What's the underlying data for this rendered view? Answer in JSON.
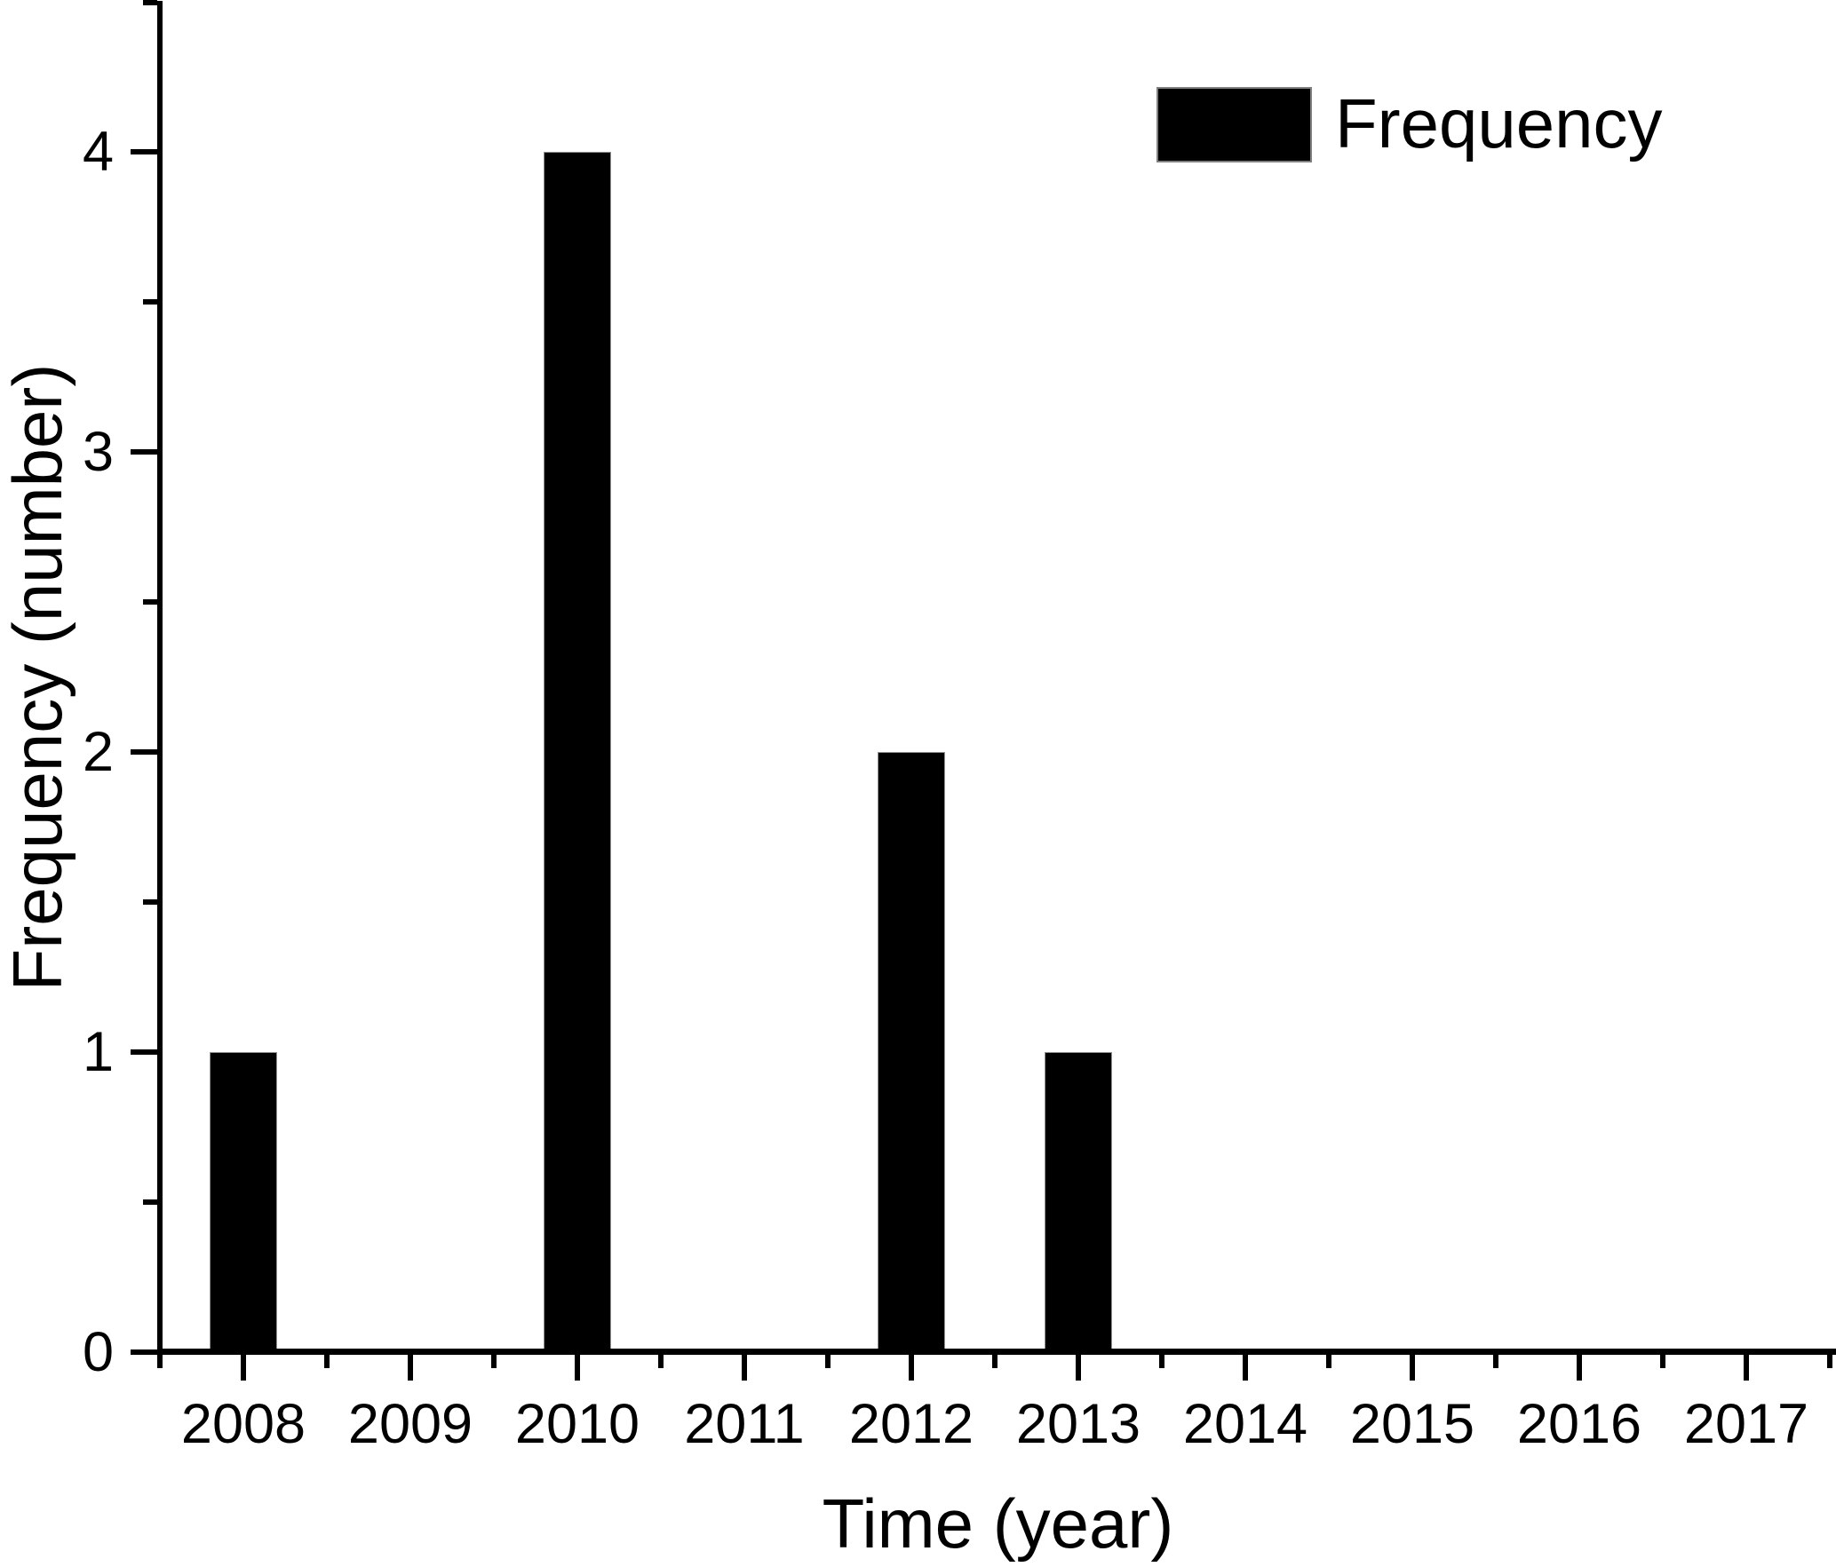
{
  "chart_data": {
    "type": "bar",
    "title": "",
    "xlabel": "Time (year)",
    "ylabel": "Frequency (number)",
    "series_name": "Frequency",
    "categories": [
      2008,
      2009,
      2010,
      2011,
      2012,
      2013,
      2014,
      2015,
      2016,
      2017
    ],
    "x_tick_labels": [
      "2008",
      "2009",
      "2010",
      "2011",
      "2012",
      "2013",
      "2014",
      "2015",
      "2016",
      "2017"
    ],
    "bars": [
      {
        "year": 2008,
        "value": 1
      },
      {
        "year": 2010,
        "value": 4
      },
      {
        "year": 2012,
        "value": 2
      },
      {
        "year": 2013,
        "value": 1
      }
    ],
    "y_major_ticks": [
      0,
      1,
      2,
      3,
      4
    ],
    "y_tick_labels": [
      "0",
      "1",
      "2",
      "3",
      "4"
    ],
    "y_minor_ticks": [
      0.5,
      1.5,
      2.5,
      3.5,
      4.5
    ],
    "x_minor_ticks": [
      2007.5,
      2008.5,
      2009.5,
      2010.5,
      2011.5,
      2012.5,
      2013.5,
      2014.5,
      2015.5,
      2016.5,
      2017.5
    ],
    "xlim": [
      2007.5,
      2017.55
    ],
    "ylim": [
      0,
      4.5
    ],
    "bar_width_years": 0.4,
    "grid": false,
    "legend": {
      "label": "Frequency",
      "position": "top-right"
    },
    "colors": {
      "bar_fill": "#000000",
      "bar_edge": "#909090",
      "axis": "#000000",
      "text": "#000000",
      "background": "#ffffff",
      "legend_swatch_border": "#808080"
    }
  }
}
